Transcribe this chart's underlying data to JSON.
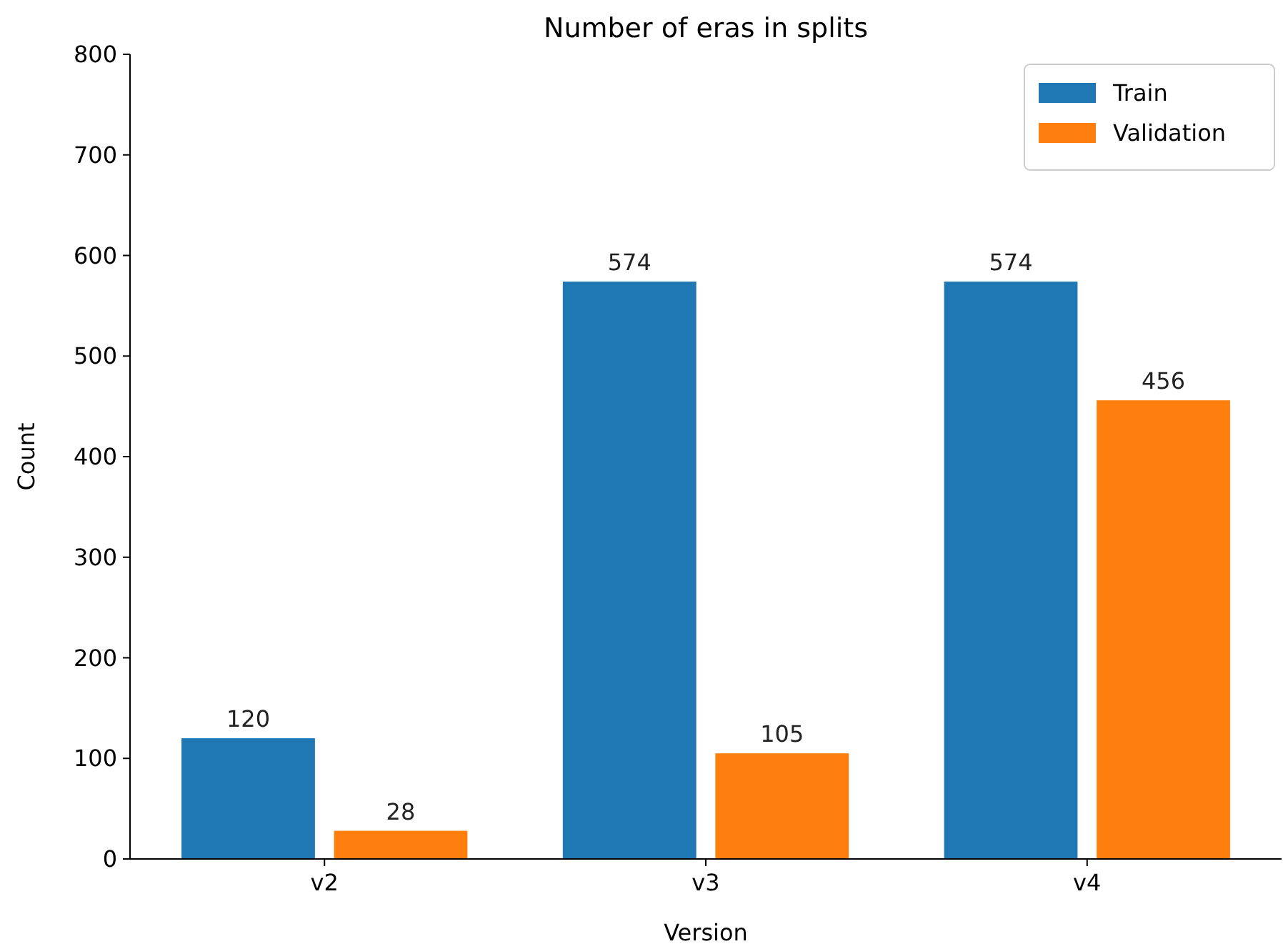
{
  "chart_data": {
    "type": "bar",
    "title": "Number of eras in splits",
    "xlabel": "Version",
    "ylabel": "Count",
    "categories": [
      "v2",
      "v3",
      "v4"
    ],
    "series": [
      {
        "name": "Train",
        "color": "#1f77b4",
        "values": [
          120,
          574,
          574
        ]
      },
      {
        "name": "Validation",
        "color": "#ff7f0e",
        "values": [
          28,
          105,
          456
        ]
      }
    ],
    "ylim": [
      0,
      800
    ],
    "yticks": [
      0,
      100,
      200,
      300,
      400,
      500,
      600,
      700,
      800
    ],
    "data_labels": true,
    "legend": "top right"
  }
}
